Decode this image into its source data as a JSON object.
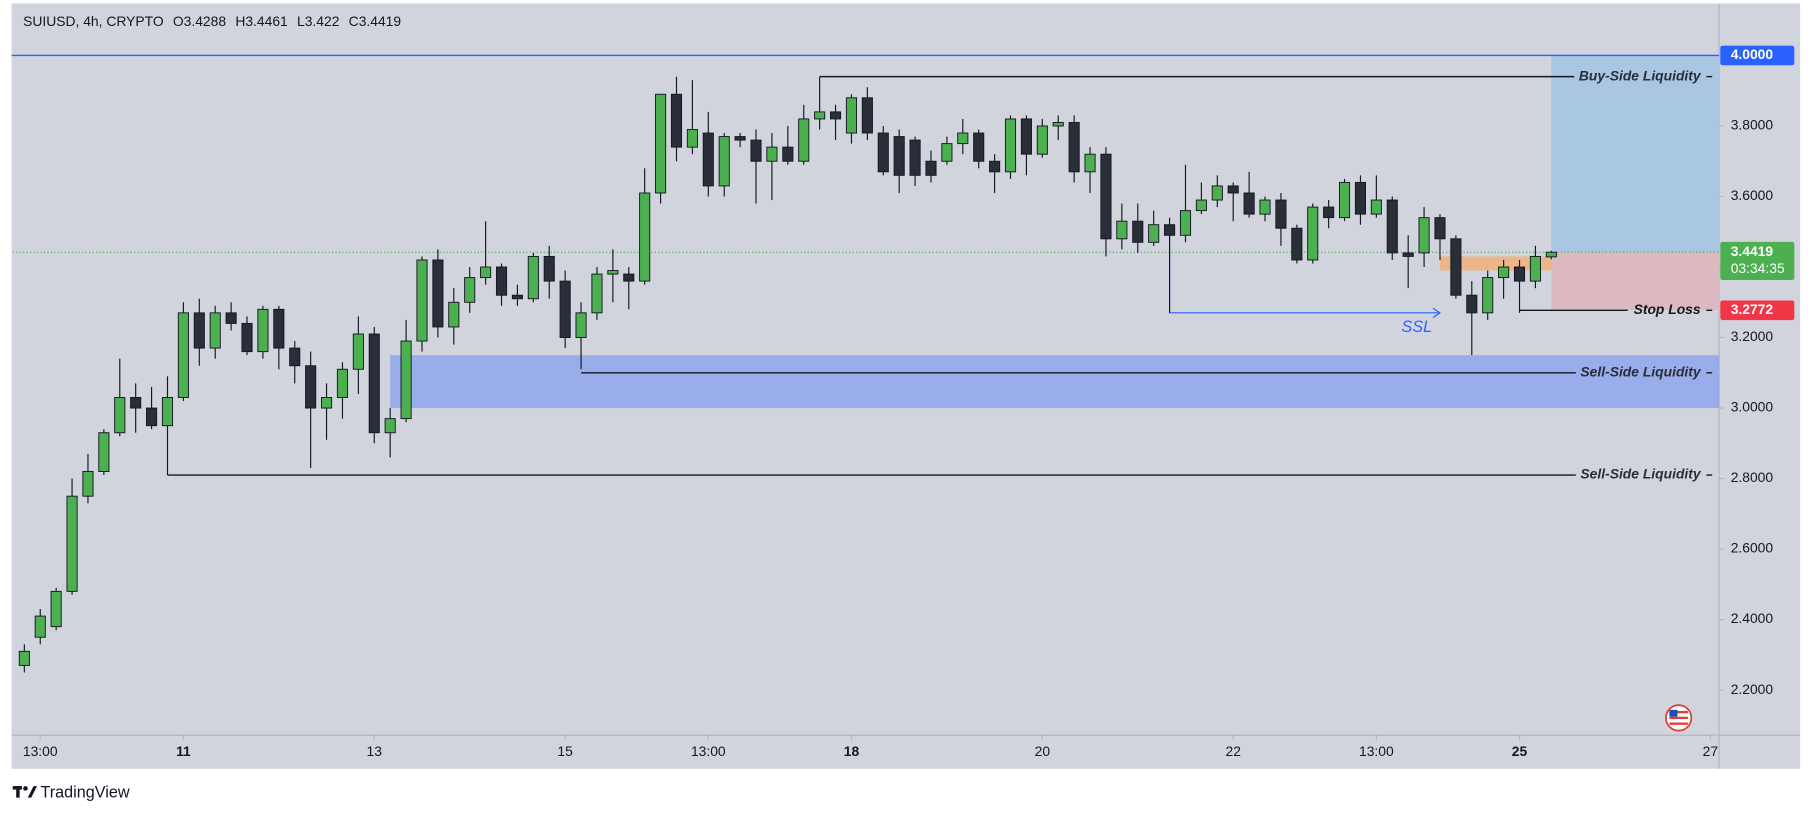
{
  "chart_data": {
    "type": "candlestick",
    "symbol_line": "SUIUSD, 4h, CRYPTO",
    "ohlc_labels": [
      "O",
      "H",
      "L",
      "C"
    ],
    "up_color": "#4caf50",
    "down_color": "#2a2e39",
    "candles": {
      "open": [
        2.27,
        2.35,
        2.38,
        2.48,
        2.75,
        2.82,
        2.93,
        3.03,
        3.0,
        2.95,
        3.03,
        3.27,
        3.17,
        3.27,
        3.24,
        3.16,
        3.28,
        3.17,
        3.12,
        3.0,
        3.03,
        3.11,
        3.21,
        2.93,
        2.97,
        3.19,
        3.42,
        3.23,
        3.3,
        3.37,
        3.4,
        3.32,
        3.31,
        3.43,
        3.36,
        3.2,
        3.27,
        3.38,
        3.38,
        3.36,
        3.61,
        3.89,
        3.74,
        3.78,
        3.63,
        3.77,
        3.76,
        3.7,
        3.74,
        3.7,
        3.82,
        3.84,
        3.78,
        3.88,
        3.78,
        3.77,
        3.76,
        3.7,
        3.7,
        3.75,
        3.78,
        3.7,
        3.67,
        3.82,
        3.72,
        3.8,
        3.81,
        3.67,
        3.72,
        3.48,
        3.53,
        3.47,
        3.52,
        3.49,
        3.56,
        3.59,
        3.63,
        3.61,
        3.55,
        3.59,
        3.51,
        3.42,
        3.57,
        3.54,
        3.64,
        3.55,
        3.59,
        3.44,
        3.44,
        3.54,
        3.48,
        3.32,
        3.27,
        3.37,
        3.4,
        3.36,
        3.4288
      ],
      "high": [
        2.33,
        2.43,
        2.49,
        2.8,
        2.87,
        2.94,
        3.14,
        3.07,
        3.06,
        3.09,
        3.3,
        3.31,
        3.29,
        3.3,
        3.26,
        3.29,
        3.29,
        3.19,
        3.16,
        3.07,
        3.13,
        3.26,
        3.23,
        3.0,
        3.25,
        3.43,
        3.45,
        3.34,
        3.4,
        3.53,
        3.41,
        3.35,
        3.44,
        3.46,
        3.39,
        3.3,
        3.4,
        3.45,
        3.4,
        3.68,
        3.89,
        3.94,
        3.93,
        3.84,
        3.78,
        3.78,
        3.79,
        3.78,
        3.8,
        3.86,
        3.94,
        3.86,
        3.89,
        3.91,
        3.8,
        3.79,
        3.77,
        3.73,
        3.77,
        3.82,
        3.79,
        3.72,
        3.83,
        3.83,
        3.82,
        3.83,
        3.83,
        3.74,
        3.74,
        3.58,
        3.58,
        3.56,
        3.54,
        3.69,
        3.64,
        3.66,
        3.64,
        3.67,
        3.6,
        3.61,
        3.52,
        3.58,
        3.59,
        3.65,
        3.66,
        3.66,
        3.6,
        3.49,
        3.57,
        3.55,
        3.49,
        3.36,
        3.39,
        3.42,
        3.42,
        3.46,
        3.4461
      ],
      "low": [
        2.25,
        2.33,
        2.37,
        2.47,
        2.73,
        2.81,
        2.92,
        2.93,
        2.94,
        2.81,
        3.02,
        3.12,
        3.14,
        3.22,
        3.15,
        3.14,
        3.11,
        3.07,
        2.83,
        2.91,
        2.97,
        3.04,
        2.9,
        2.86,
        2.96,
        3.16,
        3.2,
        3.18,
        3.27,
        3.35,
        3.29,
        3.29,
        3.3,
        3.31,
        3.17,
        3.11,
        3.25,
        3.3,
        3.28,
        3.35,
        3.58,
        3.7,
        3.72,
        3.6,
        3.6,
        3.74,
        3.58,
        3.59,
        3.69,
        3.69,
        3.79,
        3.76,
        3.75,
        3.76,
        3.66,
        3.61,
        3.63,
        3.64,
        3.69,
        3.72,
        3.68,
        3.61,
        3.65,
        3.66,
        3.71,
        3.76,
        3.64,
        3.61,
        3.43,
        3.45,
        3.44,
        3.46,
        3.27,
        3.47,
        3.55,
        3.57,
        3.53,
        3.54,
        3.53,
        3.46,
        3.41,
        3.41,
        3.51,
        3.53,
        3.52,
        3.54,
        3.42,
        3.34,
        3.4,
        3.42,
        3.31,
        3.15,
        3.25,
        3.31,
        3.27,
        3.34,
        3.422
      ],
      "close": [
        2.31,
        2.41,
        2.48,
        2.75,
        2.82,
        2.93,
        3.03,
        3.0,
        2.95,
        3.03,
        3.27,
        3.17,
        3.27,
        3.24,
        3.16,
        3.28,
        3.17,
        3.12,
        3.0,
        3.03,
        3.11,
        3.21,
        2.93,
        2.97,
        3.19,
        3.42,
        3.23,
        3.3,
        3.37,
        3.4,
        3.32,
        3.31,
        3.43,
        3.36,
        3.2,
        3.27,
        3.38,
        3.39,
        3.36,
        3.61,
        3.89,
        3.74,
        3.79,
        3.63,
        3.77,
        3.76,
        3.7,
        3.74,
        3.7,
        3.82,
        3.84,
        3.82,
        3.88,
        3.78,
        3.67,
        3.66,
        3.66,
        3.66,
        3.75,
        3.78,
        3.7,
        3.67,
        3.82,
        3.72,
        3.8,
        3.81,
        3.67,
        3.72,
        3.48,
        3.53,
        3.47,
        3.52,
        3.49,
        3.56,
        3.59,
        3.63,
        3.61,
        3.55,
        3.59,
        3.51,
        3.42,
        3.57,
        3.54,
        3.64,
        3.55,
        3.59,
        3.44,
        3.43,
        3.54,
        3.48,
        3.32,
        3.27,
        3.37,
        3.4,
        3.36,
        3.43,
        3.4419
      ]
    },
    "xlim": [
      -0.73,
      106.55
    ],
    "ylim": [
      2.072,
      4.1475
    ],
    "xticks": [
      {
        "value": 1,
        "label": "13:00",
        "bold": false
      },
      {
        "value": 10,
        "label": "11",
        "bold": true
      },
      {
        "value": 22,
        "label": "13",
        "bold": false
      },
      {
        "value": 34,
        "label": "15",
        "bold": false
      },
      {
        "value": 43,
        "label": "13:00",
        "bold": false
      },
      {
        "value": 52,
        "label": "18",
        "bold": true
      },
      {
        "value": 64,
        "label": "20",
        "bold": false
      },
      {
        "value": 76,
        "label": "22",
        "bold": false
      },
      {
        "value": 85,
        "label": "13:00",
        "bold": false
      },
      {
        "value": 94,
        "label": "25",
        "bold": true
      },
      {
        "value": 106,
        "label": "27",
        "bold": false
      }
    ],
    "yticks": [
      {
        "value": 2.2,
        "label": "2.2000"
      },
      {
        "value": 2.4,
        "label": "2.4000"
      },
      {
        "value": 2.6,
        "label": "2.6000"
      },
      {
        "value": 2.8,
        "label": "2.8000"
      },
      {
        "value": 3.0,
        "label": "3.0000"
      },
      {
        "value": 3.2,
        "label": "3.2000"
      },
      {
        "value": 3.4,
        "label": "3.4000"
      },
      {
        "value": 3.6,
        "label": "3.6000"
      },
      {
        "value": 3.8,
        "label": "3.8000"
      }
    ],
    "horizontal_line": {
      "value": 4.0,
      "label": "4.0000",
      "color": "#2962ff"
    },
    "countdown": "03:34:35",
    "levels": [
      {
        "name": "Buy-Side Liquidity",
        "value": 3.94,
        "start": 50
      },
      {
        "name": "Sell-Side Liquidity",
        "value": 3.1,
        "start": 35
      },
      {
        "name": "Sell-Side Liquidity",
        "value": 2.81,
        "start": 9
      }
    ],
    "zone": {
      "from": 3.0,
      "to": 3.15,
      "start": 23,
      "color": "#8fa6ec"
    },
    "orange_zone": {
      "from": 3.39,
      "to": 3.43,
      "start": 89,
      "end": 96,
      "color": "#f0b07a"
    },
    "position": {
      "start": 96,
      "entry": 3.4419,
      "target": 4.0,
      "stop": 3.2772
    },
    "stop_loss": {
      "label": "Stop Loss",
      "value": 3.2772,
      "start": 94
    },
    "ssl": {
      "label": "SSL",
      "value": 3.27,
      "start": 72,
      "end": 89
    },
    "brand": "TradingView"
  }
}
